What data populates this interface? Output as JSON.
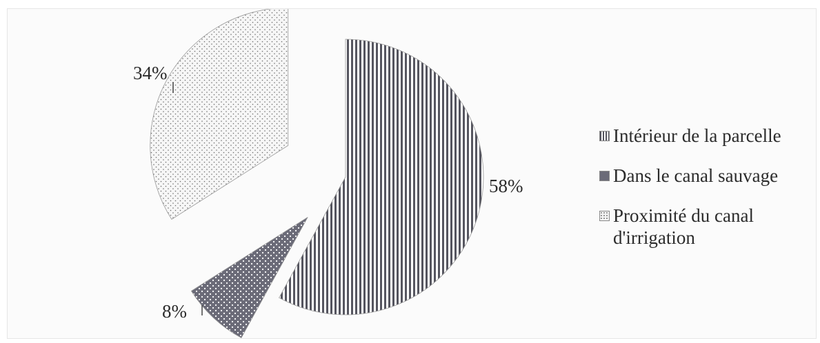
{
  "chart_data": {
    "type": "pie",
    "title": "",
    "slices": [
      {
        "label": "Intérieur de la parcelle",
        "value": 58,
        "value_label": "58%",
        "pattern": "vertical-stripes",
        "color": "#55555f"
      },
      {
        "label": "Dans le canal sauvage",
        "value": 8,
        "value_label": "8%",
        "pattern": "dots-dark",
        "color": "#6b6b78"
      },
      {
        "label": "Proximité du canal d'irrigation",
        "value": 34,
        "value_label": "34%",
        "pattern": "dots-light",
        "color": "#f4f4f4"
      }
    ],
    "legend_position": "right",
    "exploded": true
  }
}
